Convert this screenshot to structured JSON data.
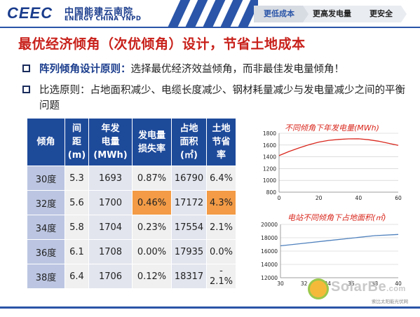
{
  "header": {
    "logo_mark": "CEEC",
    "logo_cn": "中国能建云南院",
    "logo_en": "ENERGY CHINA YNPD",
    "nav": [
      "更低成本",
      "更高发电量",
      "更安全"
    ]
  },
  "title": "最优经济倾角（次优倾角）设计，节省土地成本",
  "bullets": [
    {
      "bold": "阵列倾角设计原则：",
      "text": "选择最优经济效益倾角，而非最佳发电量倾角！"
    },
    {
      "bold": "",
      "text": "比选原则：占地面积减少、电缆长度减少、钢材耗量减少与发电量减少之间的平衡问题"
    }
  ],
  "table": {
    "headers": [
      "倾角",
      "间距\n(m)",
      "年发电量\n(MWh)",
      "发电量\n损失率",
      "占地\n面积\n(㎡)",
      "土地\n节省\n率"
    ],
    "rows": [
      [
        "30度",
        "5.3",
        "1693",
        "0.87%",
        "16790",
        "6.4%"
      ],
      [
        "32度",
        "5.6",
        "1700",
        "0.46%",
        "17172",
        "4.3%"
      ],
      [
        "34度",
        "5.8",
        "1704",
        "0.23%",
        "17554",
        "2.1%"
      ],
      [
        "36度",
        "6.1",
        "1708",
        "0.00%",
        "17935",
        "0.0%"
      ],
      [
        "38度",
        "6.4",
        "1706",
        "0.12%",
        "18317",
        "-\n2.1%"
      ]
    ],
    "highlight_color": "#f39b46",
    "header_color": "#1e4a9a"
  },
  "chart_data": [
    {
      "type": "line",
      "title": "不同倾角下年发电量(MWh)",
      "x_ticks": [
        "0",
        "20",
        "40",
        "60"
      ],
      "y_ticks": [
        "800",
        "1000",
        "1200",
        "1400",
        "1600",
        "1800"
      ],
      "xlim": [
        0,
        60
      ],
      "ylim": [
        800,
        1800
      ],
      "series": [
        {
          "x": [
            0,
            5,
            10,
            15,
            20,
            25,
            30,
            35,
            40,
            45,
            50,
            55,
            60
          ],
          "y": [
            1420,
            1490,
            1550,
            1605,
            1650,
            1680,
            1695,
            1705,
            1706,
            1690,
            1665,
            1630,
            1595
          ]
        }
      ],
      "color": "#d9281e",
      "grid": true
    },
    {
      "type": "line",
      "title": "电站不同倾角下占地面积(㎡)",
      "x_ticks": [
        "30",
        "32",
        "34",
        "36",
        "38",
        "40"
      ],
      "y_ticks": [
        "12000",
        "14000",
        "16000",
        "18000",
        "20000"
      ],
      "xlim": [
        30,
        40
      ],
      "ylim": [
        12000,
        20000
      ],
      "series": [
        {
          "x": [
            30,
            32,
            34,
            36,
            38,
            40
          ],
          "y": [
            16790,
            17172,
            17554,
            17935,
            18317,
            18500
          ]
        }
      ],
      "color": "#4f81bd",
      "grid": true
    }
  ],
  "watermark": {
    "brand": "SolarBe",
    "suffix": ".com",
    "sub": "索比太阳能光伏网"
  }
}
